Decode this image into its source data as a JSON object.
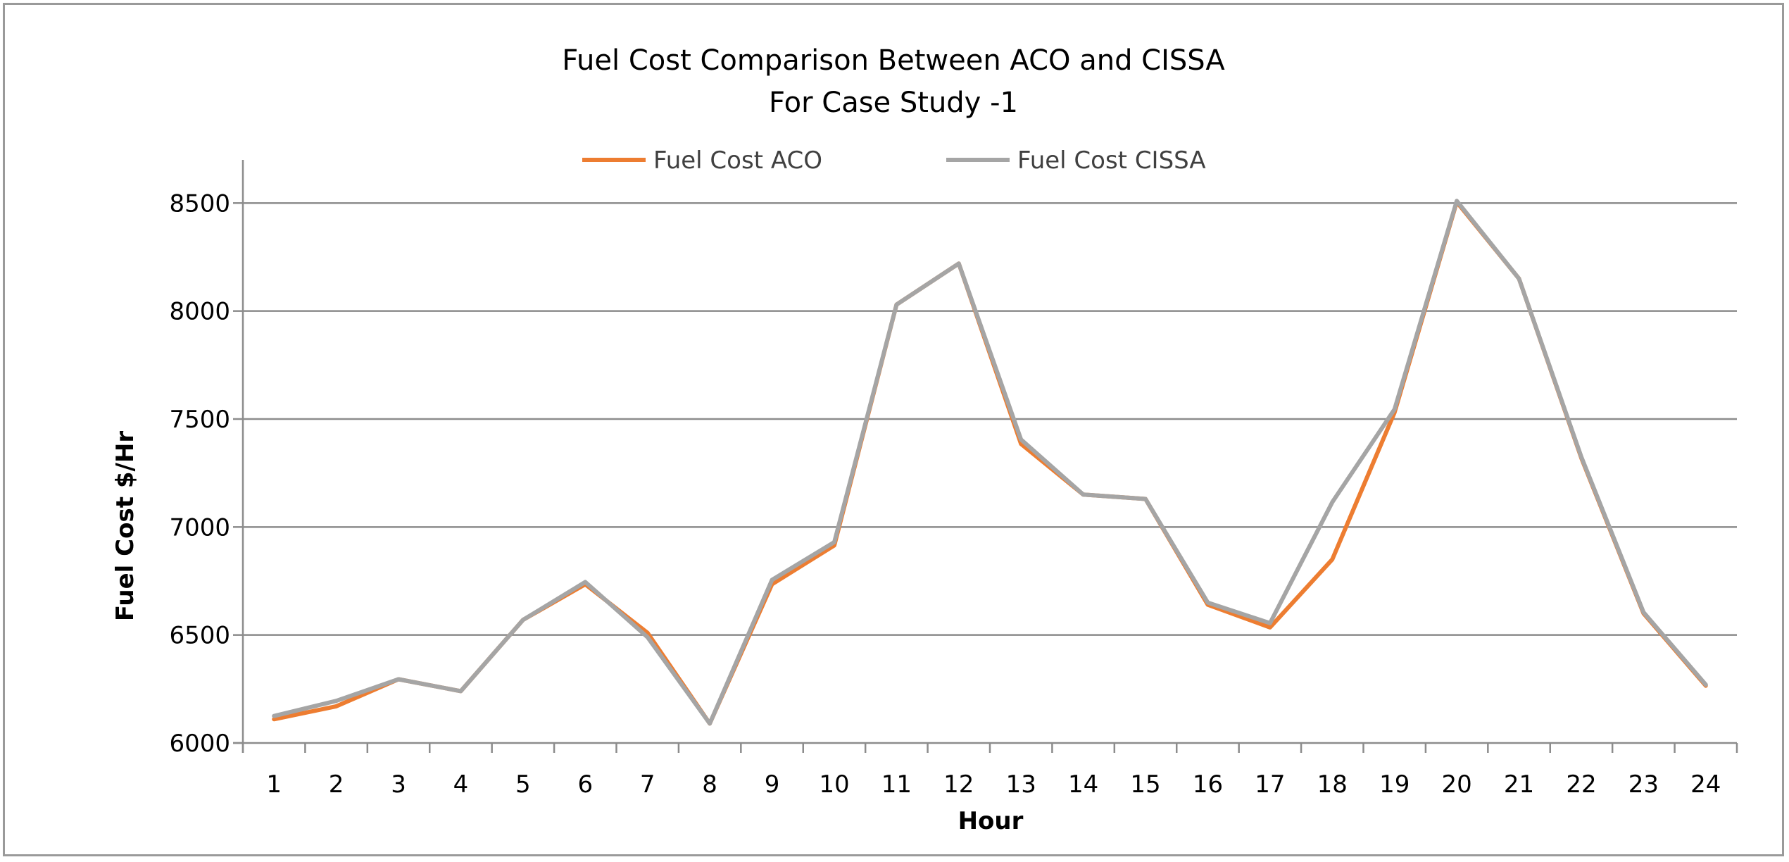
{
  "chart_data": {
    "type": "line",
    "title": [
      "Fuel Cost Comparison Between ACO and CISSA",
      "For Case Study -1"
    ],
    "xlabel": "Hour",
    "ylabel": "Fuel Cost  $/Hr",
    "categories": [
      "1",
      "2",
      "3",
      "4",
      "5",
      "6",
      "7",
      "8",
      "9",
      "10",
      "11",
      "12",
      "13",
      "14",
      "15",
      "16",
      "17",
      "18",
      "19",
      "20",
      "21",
      "22",
      "23",
      "24"
    ],
    "ylim": [
      6000,
      8700
    ],
    "yticks": [
      6000,
      6500,
      7000,
      7500,
      8000,
      8500
    ],
    "grid": true,
    "legend_position": "top",
    "series": [
      {
        "name": "Fuel Cost ACO",
        "color": "#ED7D31",
        "values": [
          6110,
          6170,
          6295,
          6240,
          6570,
          6735,
          6510,
          6090,
          6735,
          6915,
          8030,
          8220,
          7385,
          7150,
          7130,
          6640,
          6535,
          6850,
          7530,
          8505,
          8150,
          7320,
          6600,
          6265
        ]
      },
      {
        "name": "Fuel Cost CISSA",
        "color": "#A5A5A5",
        "values": [
          6125,
          6195,
          6295,
          6240,
          6570,
          6745,
          6490,
          6090,
          6755,
          6930,
          8030,
          8220,
          7405,
          7150,
          7130,
          6650,
          6555,
          7115,
          7545,
          8510,
          8150,
          7325,
          6605,
          6270
        ]
      }
    ]
  }
}
